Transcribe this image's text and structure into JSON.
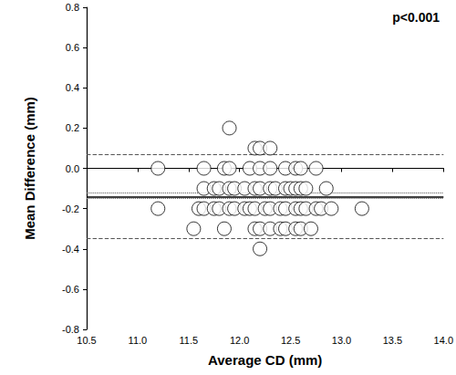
{
  "chart_data": {
    "type": "scatter",
    "x_label": "Average CD (mm)",
    "y_label": "Mean Difference (mm)",
    "annotations": [
      {
        "text": "p<0.001"
      }
    ],
    "xlim": [
      10.5,
      14.0
    ],
    "xticks": [
      10.5,
      {
        "value": 11,
        "label": "11.0"
      },
      11.5,
      {
        "value": 12,
        "label": "12.0"
      },
      12.5,
      {
        "value": 13,
        "label": "13.0"
      },
      13.5,
      {
        "value": 14,
        "label": "14.0"
      }
    ],
    "ylim": [
      -0.8,
      0.8
    ],
    "yticks": [
      -0.8,
      -0.6,
      -0.4,
      -0.2,
      {
        "value": 0,
        "label": "0.0"
      },
      0.2,
      0.4,
      0.6,
      0.8
    ],
    "grid": false,
    "marker": "hollow_circle",
    "color": "#000000",
    "x": [
      11.9,
      12.15,
      12.2,
      12.3,
      11.2,
      11.65,
      11.85,
      11.9,
      12.1,
      12.2,
      12.3,
      12.45,
      12.55,
      12.6,
      12.75,
      11.65,
      11.75,
      11.8,
      11.9,
      11.95,
      12.05,
      12.15,
      12.2,
      12.3,
      12.35,
      12.45,
      12.5,
      12.55,
      12.6,
      12.65,
      12.85,
      11.2,
      11.6,
      11.65,
      11.75,
      11.8,
      11.9,
      11.95,
      12.05,
      12.1,
      12.15,
      12.25,
      12.3,
      12.4,
      12.45,
      12.55,
      12.6,
      12.65,
      12.75,
      12.8,
      12.9,
      13.2,
      11.55,
      11.85,
      12.15,
      12.2,
      12.3,
      12.4,
      12.45,
      12.55,
      12.6,
      12.7,
      12.2
    ],
    "values": [
      0.2,
      0.1,
      0.1,
      0.1,
      0.0,
      0.0,
      0.0,
      0.0,
      0.0,
      0.0,
      0.0,
      0.0,
      0.0,
      0.0,
      0.0,
      -0.1,
      -0.1,
      -0.1,
      -0.1,
      -0.1,
      -0.1,
      -0.1,
      -0.1,
      -0.1,
      -0.1,
      -0.1,
      -0.1,
      -0.1,
      -0.1,
      -0.1,
      -0.1,
      -0.2,
      -0.2,
      -0.2,
      -0.2,
      -0.2,
      -0.2,
      -0.2,
      -0.2,
      -0.2,
      -0.2,
      -0.2,
      -0.2,
      -0.2,
      -0.2,
      -0.2,
      -0.2,
      -0.2,
      -0.2,
      -0.2,
      -0.2,
      -0.2,
      -0.3,
      -0.3,
      -0.3,
      -0.3,
      -0.3,
      -0.3,
      -0.3,
      -0.3,
      -0.3,
      -0.3,
      -0.4
    ],
    "hlines": [
      {
        "y": 0.075,
        "line_style": "dashed"
      },
      {
        "y": -0.12,
        "line_style": "dotted"
      },
      {
        "y": -0.135,
        "line_style": "solid"
      },
      {
        "y": -0.155,
        "line_style": "dotted"
      },
      {
        "y": -0.35,
        "line_style": "dashed"
      }
    ]
  }
}
